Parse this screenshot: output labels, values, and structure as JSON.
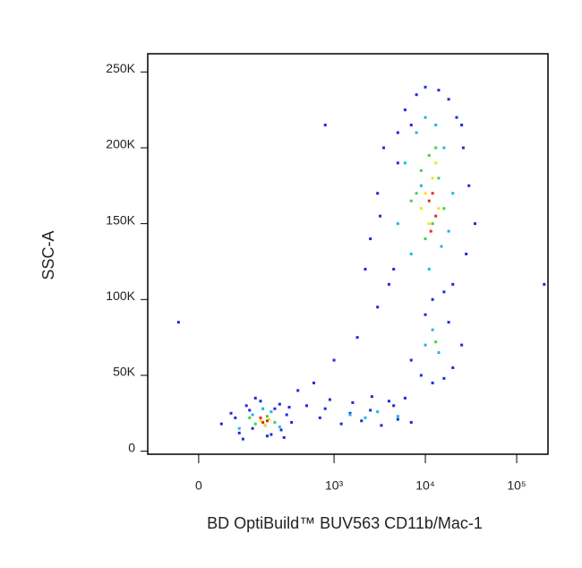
{
  "chart_data": {
    "type": "scatter",
    "x_label": "BD OptiBuild™ BUV563 CD11b/Mac-1",
    "y_label": "SSC-A",
    "xscale": "biexponential",
    "xlim": [
      -110,
      220000
    ],
    "ylim": [
      -2000,
      262000
    ],
    "xticks": [
      0,
      {
        "value": 1000,
        "label": "10³"
      },
      {
        "value": 10000,
        "label": "10⁴"
      },
      {
        "value": 100000,
        "label": "10⁵"
      }
    ],
    "yticks": [
      0,
      {
        "value": 50000,
        "label": "50K"
      },
      {
        "value": 100000,
        "label": "100K"
      },
      {
        "value": 150000,
        "label": "150K"
      },
      {
        "value": 200000,
        "label": "200K"
      },
      {
        "value": 250000,
        "label": "250K"
      }
    ],
    "series": [
      {
        "color": "#1a2cd8",
        "x": [
          40,
          60,
          80,
          100,
          120,
          150,
          180,
          220,
          260,
          300,
          340,
          90,
          130,
          200,
          250,
          70,
          110,
          170,
          280,
          320,
          500,
          700,
          900,
          1200,
          1600,
          2000,
          2600,
          3300,
          4000,
          5000,
          6000,
          7000,
          800,
          1500,
          2500,
          4500,
          2500,
          3000,
          3500,
          4500,
          6000,
          8000,
          10000,
          14000,
          18000,
          22000,
          26000,
          30000,
          35000,
          4000,
          5000,
          20000,
          28000,
          16000,
          7000,
          12000,
          3200,
          25000,
          7000,
          9000,
          12000,
          16000,
          20000,
          25000,
          10000,
          18000,
          1000,
          1800,
          3000,
          600,
          2200,
          400,
          -35,
          5000,
          800,
          200000
        ],
        "values": [
          18000,
          25000,
          12000,
          30000,
          15000,
          33000,
          10000,
          28000,
          14000,
          24000,
          19000,
          8000,
          35000,
          11000,
          31000,
          22000,
          27000,
          17000,
          9000,
          29000,
          30000,
          22000,
          34000,
          18000,
          32000,
          20000,
          36000,
          17000,
          33000,
          21000,
          35000,
          19000,
          28000,
          25000,
          27000,
          30000,
          140000,
          170000,
          200000,
          120000,
          225000,
          235000,
          240000,
          238000,
          232000,
          220000,
          200000,
          175000,
          150000,
          110000,
          190000,
          110000,
          130000,
          105000,
          215000,
          100000,
          155000,
          215000,
          60000,
          50000,
          45000,
          48000,
          55000,
          70000,
          90000,
          85000,
          60000,
          75000,
          95000,
          45000,
          120000,
          40000,
          85000,
          210000,
          215000,
          110000
        ]
      },
      {
        "color": "#19b8e6",
        "x": [
          5000,
          6000,
          8000,
          10000,
          13000,
          16000,
          20000,
          7000,
          11000,
          15000,
          9000,
          18000,
          10000,
          14000,
          12000,
          80,
          120,
          200,
          250,
          160,
          1500,
          3000,
          5000,
          2200
        ],
        "values": [
          150000,
          190000,
          210000,
          220000,
          215000,
          200000,
          170000,
          130000,
          120000,
          135000,
          175000,
          145000,
          70000,
          65000,
          80000,
          15000,
          24000,
          26000,
          16000,
          28000,
          24000,
          26000,
          23000,
          22000
        ]
      },
      {
        "color": "#3fd34a",
        "x": [
          7000,
          9000,
          11000,
          14000,
          16000,
          10000,
          12000,
          8000,
          13000,
          130,
          180,
          220,
          110,
          13000
        ],
        "values": [
          165000,
          185000,
          195000,
          180000,
          160000,
          140000,
          150000,
          170000,
          200000,
          18000,
          23000,
          19000,
          22000,
          72000
        ]
      },
      {
        "color": "#f2e51a",
        "x": [
          10000,
          12000,
          14000,
          11000,
          9000,
          13000,
          150,
          190,
          170
        ],
        "values": [
          170000,
          180000,
          160000,
          150000,
          160000,
          190000,
          20000,
          21000,
          17000
        ]
      },
      {
        "color": "#e8281c",
        "x": [
          11000,
          12000,
          13000,
          11500,
          160,
          180,
          150
        ],
        "values": [
          165000,
          170000,
          155000,
          145000,
          19000,
          20000,
          22000
        ]
      }
    ]
  }
}
